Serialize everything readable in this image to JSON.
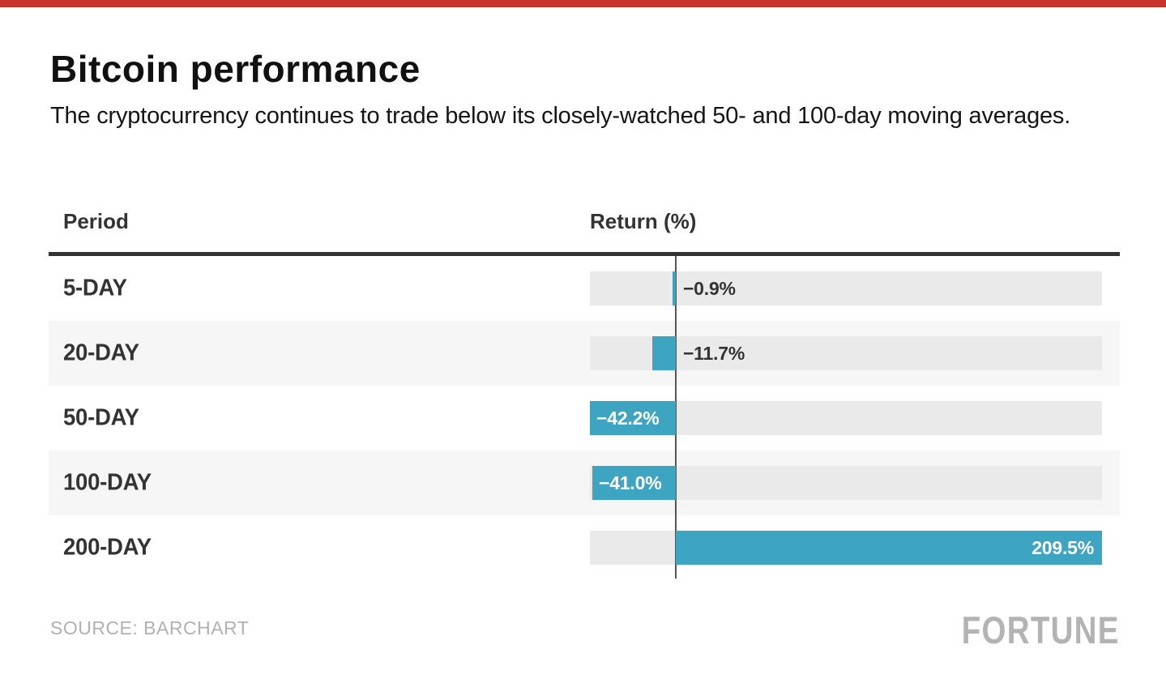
{
  "accent_bar_color": "#c9352e",
  "header": {
    "title": "Bitcoin performance",
    "subtitle": "The cryptocurrency continues to trade below its closely-watched 50- and 100-day moving averages."
  },
  "table": {
    "period_header": "Period",
    "return_header": "Return (%)"
  },
  "chart_data": {
    "type": "bar",
    "orientation": "horizontal",
    "title": "Bitcoin performance",
    "subtitle": "The cryptocurrency continues to trade below its closely-watched 50- and 100-day moving averages.",
    "xlabel": "Return (%)",
    "ylabel": "Period",
    "categories": [
      "5-DAY",
      "20-DAY",
      "50-DAY",
      "100-DAY",
      "200-DAY"
    ],
    "values": [
      -0.9,
      -11.7,
      -42.2,
      -41.0,
      209.5
    ],
    "value_labels": [
      "−0.9%",
      "−11.7%",
      "−42.2%",
      "−41.0%",
      "209.5%"
    ],
    "label_inside": [
      false,
      false,
      true,
      true,
      true
    ],
    "axis_min": -42.2,
    "axis_max": 209.5,
    "zero_line": true,
    "grid": false,
    "legend": "none",
    "bar_color": "#3da5c2",
    "track_color": "#eaeaea",
    "zebra_color": "#f6f6f6",
    "inside_label_color": "#ffffff",
    "outside_label_color": "#333333"
  },
  "footer": {
    "source": "SOURCE: BARCHART",
    "brand": "FORTUNE"
  }
}
